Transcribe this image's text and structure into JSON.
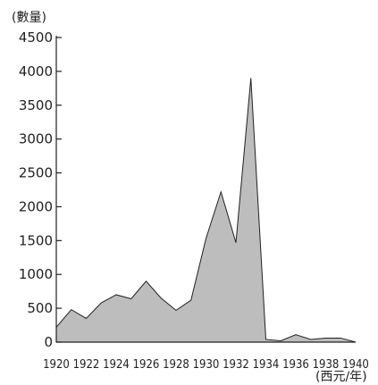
{
  "chart_data": {
    "type": "area",
    "ylabel": "(數量)",
    "xlabel": "(西元/年)",
    "ylim": [
      0,
      4500
    ],
    "yticks": [
      0,
      500,
      1000,
      1500,
      2000,
      2500,
      3000,
      3500,
      4000,
      4500
    ],
    "xlim": [
      1920,
      1940
    ],
    "xticks": [
      1920,
      1922,
      1924,
      1926,
      1928,
      1930,
      1932,
      1934,
      1936,
      1938,
      1940
    ],
    "x": [
      1920,
      1921,
      1922,
      1923,
      1924,
      1925,
      1926,
      1927,
      1928,
      1929,
      1930,
      1931,
      1932,
      1933,
      1934,
      1935,
      1936,
      1937,
      1938,
      1939,
      1940
    ],
    "series": [
      {
        "values": [
          220,
          480,
          350,
          580,
          700,
          640,
          900,
          650,
          470,
          620,
          1530,
          2220,
          1470,
          3900,
          40,
          20,
          110,
          40,
          60,
          60,
          0
        ]
      }
    ],
    "grid": false,
    "colors": {
      "fill": "#bdbdbd",
      "stroke": "#222222",
      "axis": "#222222"
    }
  }
}
